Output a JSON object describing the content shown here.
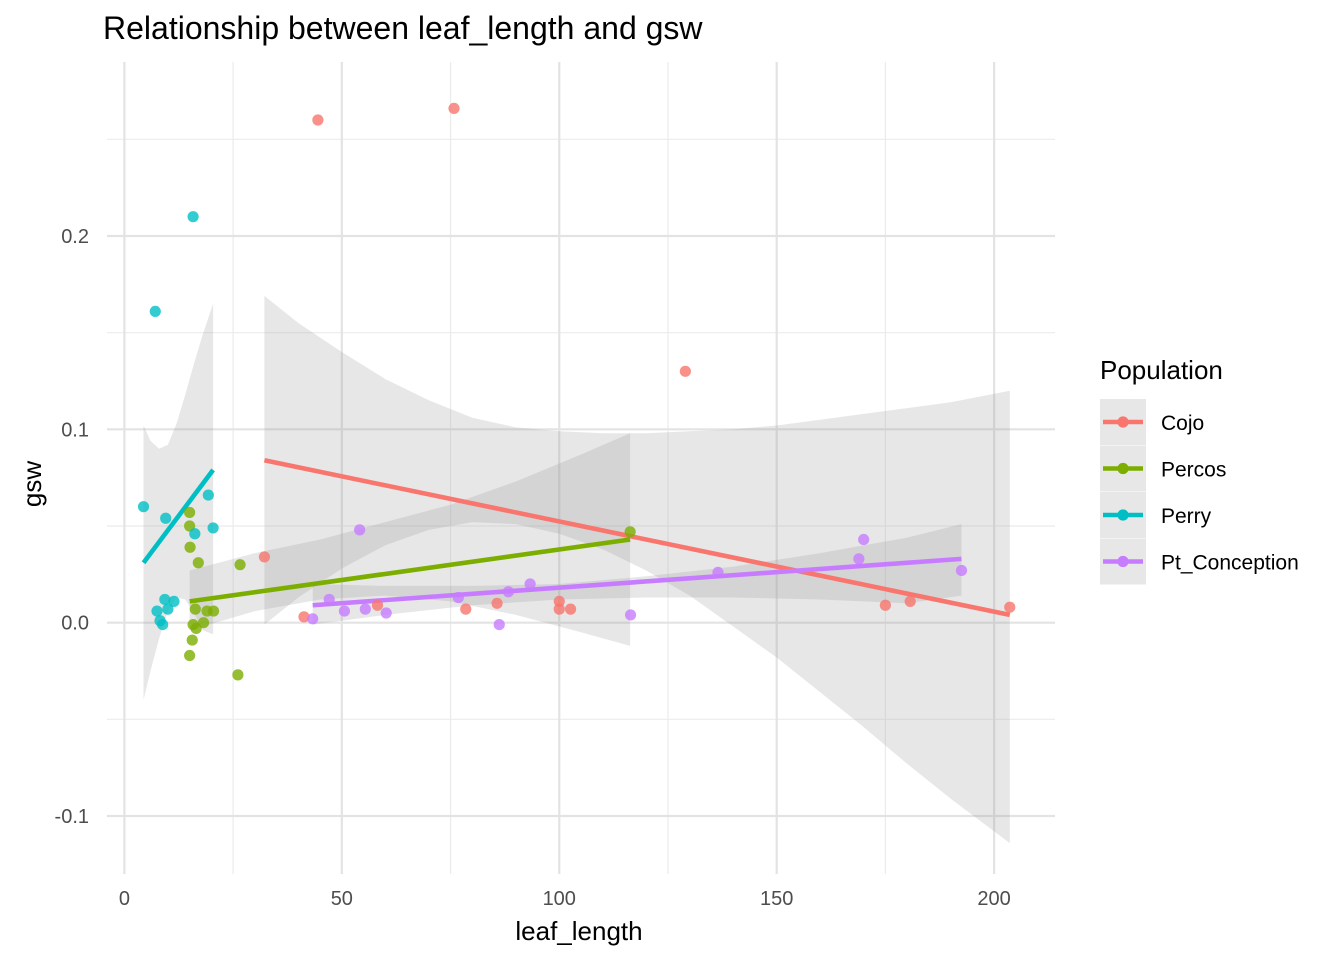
{
  "chart_data": {
    "type": "scatter",
    "title": "Relationship between leaf_length and gsw",
    "xlabel": "leaf_length",
    "ylabel": "gsw",
    "xlim": [
      -4,
      214
    ],
    "ylim": [
      -0.13,
      0.29
    ],
    "x_ticks": [
      0,
      50,
      100,
      150,
      200
    ],
    "x_tick_labels": [
      "0",
      "50",
      "100",
      "150",
      "200"
    ],
    "y_ticks": [
      -0.1,
      0.0,
      0.1,
      0.2
    ],
    "y_tick_labels": [
      "-0.1",
      "0.0",
      "0.1",
      "0.2"
    ],
    "grid": true,
    "legend": {
      "title": "Population",
      "placement": "right"
    },
    "series": [
      {
        "name": "Cojo",
        "color": "#F8766D",
        "points": [
          [
            44.5,
            0.26
          ],
          [
            75.8,
            0.266
          ],
          [
            129,
            0.13
          ],
          [
            32.2,
            0.034
          ],
          [
            41.3,
            0.003
          ],
          [
            58.2,
            0.009
          ],
          [
            78.5,
            0.007
          ],
          [
            85.7,
            0.01
          ],
          [
            100,
            0.011
          ],
          [
            102.6,
            0.007
          ],
          [
            100,
            0.007
          ],
          [
            175,
            0.009
          ],
          [
            180.7,
            0.011
          ],
          [
            203.6,
            0.008
          ]
        ],
        "fit": {
          "x": [
            32.2,
            203.6
          ],
          "y": [
            0.084,
            0.004
          ]
        },
        "band": {
          "x": [
            32.2,
            40,
            50,
            60,
            70,
            80,
            90,
            100,
            110,
            120,
            130,
            140,
            150,
            160,
            170,
            180,
            190,
            203.6
          ],
          "lo": [
            -0.001,
            0.013,
            0.028,
            0.04,
            0.048,
            0.052,
            0.051,
            0.046,
            0.038,
            0.027,
            0.014,
            -0.002,
            -0.018,
            -0.036,
            -0.054,
            -0.073,
            -0.091,
            -0.114
          ],
          "hi": [
            0.169,
            0.155,
            0.14,
            0.126,
            0.115,
            0.106,
            0.101,
            0.099,
            0.098,
            0.098,
            0.099,
            0.1,
            0.102,
            0.105,
            0.108,
            0.111,
            0.114,
            0.12
          ]
        }
      },
      {
        "name": "Percos",
        "color": "#7CAE00",
        "points": [
          [
            15,
            0.057
          ],
          [
            15,
            0.05
          ],
          [
            15.1,
            0.039
          ],
          [
            17,
            0.031
          ],
          [
            26.6,
            0.03
          ],
          [
            16.3,
            0.007
          ],
          [
            19,
            0.006
          ],
          [
            20.5,
            0.006
          ],
          [
            116.3,
            0.047
          ],
          [
            15.8,
            -0.001
          ],
          [
            16.5,
            -0.003
          ],
          [
            18.2,
            0.0
          ],
          [
            15.6,
            -0.009
          ],
          [
            15,
            -0.017
          ],
          [
            26.1,
            -0.027
          ]
        ],
        "fit": {
          "x": [
            15,
            116.3
          ],
          "y": [
            0.011,
            0.043
          ]
        },
        "band": {
          "x": [
            15,
            30,
            45,
            60,
            75,
            90,
            105,
            116.3
          ],
          "lo": [
            -0.004,
            0.006,
            0.012,
            0.014,
            0.011,
            0.004,
            -0.005,
            -0.012
          ],
          "hi": [
            0.027,
            0.036,
            0.043,
            0.052,
            0.061,
            0.073,
            0.087,
            0.098
          ]
        }
      },
      {
        "name": "Perry",
        "color": "#00BFC4",
        "points": [
          [
            15.8,
            0.21
          ],
          [
            7.1,
            0.161
          ],
          [
            4.4,
            0.06
          ],
          [
            9.5,
            0.054
          ],
          [
            19.3,
            0.066
          ],
          [
            20.4,
            0.049
          ],
          [
            16.2,
            0.046
          ],
          [
            9.3,
            0.012
          ],
          [
            11.4,
            0.011
          ],
          [
            7.5,
            0.006
          ],
          [
            10,
            0.007
          ],
          [
            8.2,
            0.001
          ],
          [
            8.8,
            -0.001
          ]
        ],
        "fit": {
          "x": [
            4.4,
            20.4
          ],
          "y": [
            0.031,
            0.079
          ]
        },
        "band": {
          "x": [
            4.4,
            6,
            8,
            10,
            12,
            14,
            16,
            18,
            20.4
          ],
          "lo": [
            -0.04,
            -0.025,
            -0.008,
            0.006,
            0.013,
            0.012,
            0.005,
            -0.004,
            -0.006
          ],
          "hi": [
            0.102,
            0.094,
            0.09,
            0.092,
            0.103,
            0.118,
            0.134,
            0.149,
            0.165
          ]
        }
      },
      {
        "name": "Pt_Conception",
        "color": "#C77CFF",
        "points": [
          [
            54.1,
            0.048
          ],
          [
            43.3,
            0.002
          ],
          [
            47.1,
            0.012
          ],
          [
            50.6,
            0.006
          ],
          [
            55.4,
            0.007
          ],
          [
            60.2,
            0.005
          ],
          [
            76.8,
            0.013
          ],
          [
            88.3,
            0.016
          ],
          [
            93.3,
            0.02
          ],
          [
            86.2,
            -0.001
          ],
          [
            116.4,
            0.004
          ],
          [
            136.5,
            0.026
          ],
          [
            168.9,
            0.033
          ],
          [
            170,
            0.043
          ],
          [
            192.5,
            0.027
          ]
        ],
        "fit": {
          "x": [
            43.3,
            192.5
          ],
          "y": [
            0.009,
            0.033
          ]
        },
        "band": {
          "x": [
            43.3,
            60,
            80,
            100,
            120,
            140,
            160,
            180,
            192.5
          ],
          "lo": [
            -0.001,
            0.004,
            0.009,
            0.012,
            0.013,
            0.013,
            0.012,
            0.01,
            0.014
          ],
          "hi": [
            0.02,
            0.019,
            0.019,
            0.02,
            0.024,
            0.029,
            0.036,
            0.044,
            0.051
          ]
        }
      }
    ]
  }
}
